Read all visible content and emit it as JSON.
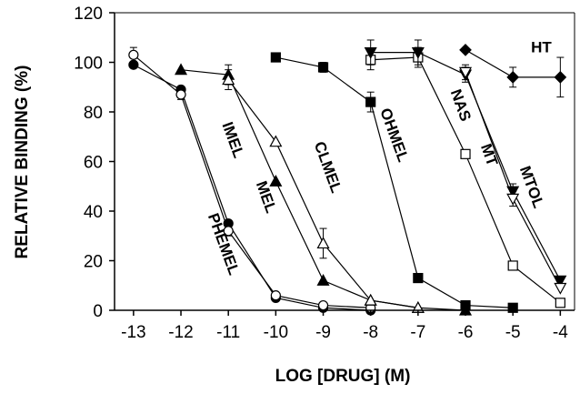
{
  "chart_data": {
    "type": "line",
    "title": "",
    "xlabel": "LOG [DRUG] (M)",
    "ylabel": "RELATIVE BINDING (%)",
    "xlim": [
      -13.4,
      -3.7
    ],
    "ylim": [
      0,
      120
    ],
    "xticks": [
      -13,
      -12,
      -11,
      -10,
      -9,
      -8,
      -7,
      -6,
      -5,
      -4
    ],
    "yticks": [
      0,
      20,
      40,
      60,
      80,
      100,
      120
    ],
    "grid": false,
    "legend": "none",
    "series": [
      {
        "name": "IMEL",
        "marker": "circle-filled",
        "x": [
          -13,
          -12,
          -11,
          -10,
          -9,
          -8
        ],
        "y": [
          99,
          89,
          35,
          5,
          1,
          0
        ],
        "err": [
          1,
          1,
          1,
          1,
          0,
          0
        ]
      },
      {
        "name": "PHEMEL",
        "marker": "circle-open",
        "x": [
          -13,
          -12,
          -11,
          -10,
          -9,
          -8
        ],
        "y": [
          103,
          87,
          32,
          6,
          2,
          1
        ],
        "err": [
          3,
          2,
          2,
          1,
          0,
          0
        ]
      },
      {
        "name": "MEL",
        "marker": "triangle-up-filled",
        "x": [
          -12,
          -11,
          -10,
          -9,
          -8,
          -7,
          -6
        ],
        "y": [
          97,
          95,
          52,
          12,
          4,
          1,
          0
        ],
        "err": [
          0,
          4,
          0,
          0,
          0,
          0,
          0
        ]
      },
      {
        "name": "CLMEL",
        "marker": "triangle-up-open",
        "x": [
          -11,
          -10,
          -9,
          -8,
          -7
        ],
        "y": [
          93,
          68,
          27,
          4,
          1
        ],
        "err": [
          4,
          0,
          6,
          0,
          0
        ]
      },
      {
        "name": "OHMEL",
        "marker": "square-filled",
        "x": [
          -10,
          -9,
          -8,
          -7,
          -6,
          -5
        ],
        "y": [
          102,
          98,
          84,
          13,
          2,
          1
        ],
        "err": [
          0,
          2,
          4,
          0,
          0,
          0
        ]
      },
      {
        "name": "NAS",
        "marker": "square-open",
        "x": [
          -8,
          -7,
          -6,
          -5,
          -4
        ],
        "y": [
          101,
          102,
          63,
          18,
          3
        ],
        "err": [
          4,
          4,
          0,
          0,
          0
        ]
      },
      {
        "name": "MT",
        "marker": "triangle-down-filled",
        "x": [
          -8,
          -7,
          -6,
          -5,
          -4
        ],
        "y": [
          104,
          104,
          95,
          48,
          12
        ],
        "err": [
          5,
          5,
          3,
          3,
          0
        ]
      },
      {
        "name": "MTOL",
        "marker": "triangle-down-open",
        "x": [
          -6,
          -5,
          -4
        ],
        "y": [
          96,
          45,
          9
        ],
        "err": [
          3,
          3,
          0
        ]
      },
      {
        "name": "HT",
        "marker": "diamond-filled",
        "x": [
          -6,
          -5,
          -4
        ],
        "y": [
          105,
          94,
          94
        ],
        "err": [
          0,
          4,
          8
        ]
      }
    ]
  }
}
